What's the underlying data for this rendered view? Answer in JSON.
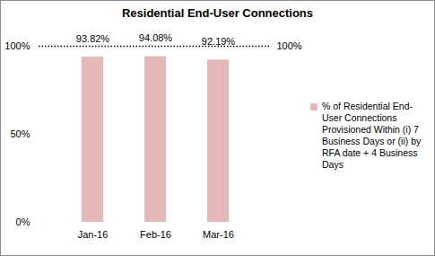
{
  "chart_data": {
    "type": "bar",
    "title": "Residential End-User Connections",
    "categories": [
      "Jan-16",
      "Feb-16",
      "Mar-16"
    ],
    "series": [
      {
        "name": "% of Residential End-User Connections Provisioned Within (i) 7 Business Days or (ii) by RFA date + 4 Business Days",
        "color": "#e6b9b8",
        "values": [
          93.82,
          94.08,
          92.19
        ],
        "value_labels": [
          "93.82%",
          "94.08%",
          "92.19%"
        ]
      }
    ],
    "ylim": [
      0,
      100
    ],
    "yticks": [
      {
        "value": 0,
        "label": "0%"
      },
      {
        "value": 50,
        "label": "50%"
      },
      {
        "value": 100,
        "label": "100%"
      }
    ],
    "target": {
      "value": 100,
      "label": "100%"
    },
    "data_labels": true,
    "legend": "right",
    "grid": false
  }
}
